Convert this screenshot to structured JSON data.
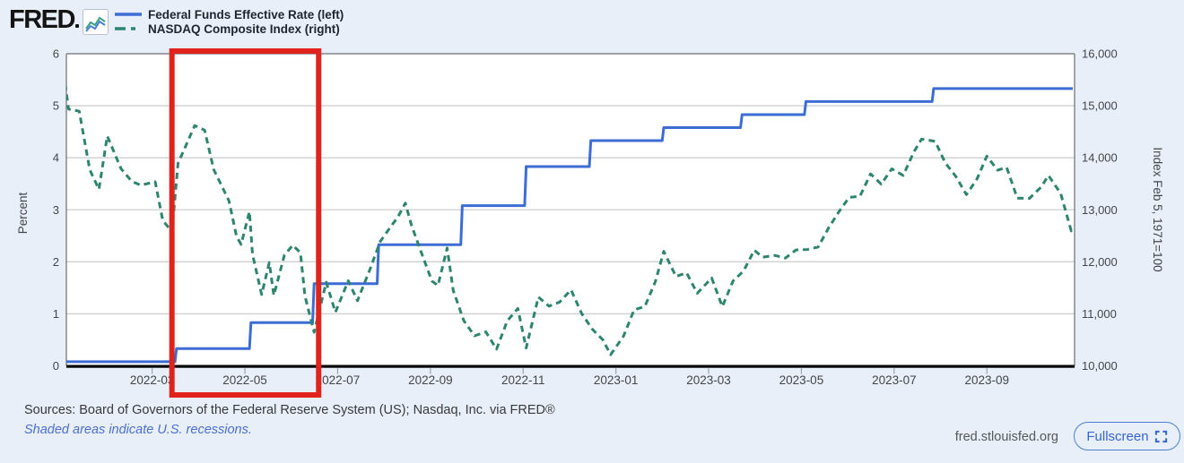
{
  "header": {
    "logo_text": "FRED",
    "logo_icon": "sparkline-chart-icon",
    "legend": [
      {
        "label": "Federal Funds Effective Rate (left)",
        "color": "#3c6dd5",
        "style": "solid"
      },
      {
        "label": "NASDAQ Composite Index (right)",
        "color": "#2d8570",
        "style": "dashed"
      }
    ]
  },
  "footer": {
    "sources": "Sources: Board of Governors of the Federal Reserve System (US); Nasdaq, Inc. via FRED®",
    "note": "Shaded areas indicate U.S. recessions.",
    "site": "fred.stlouisfed.org",
    "fullscreen_label": "Fullscreen"
  },
  "colors": {
    "background": "#e9eff8",
    "plot_background": "#ffffff",
    "grid": "#cfcfcf",
    "plot_border": "#6e6e6e",
    "axis_black": "#000000",
    "tick_text": "#434549",
    "ffr_blue": "#3c6dd5",
    "nasdaq_green": "#2d8570",
    "annotation_red": "#e0231c",
    "link_blue": "#4a6fce",
    "button_blue": "#3566d4"
  },
  "chart_data": {
    "type": "line",
    "title": "",
    "x_range": [
      "2022-01-03",
      "2023-10-27"
    ],
    "x_tick_labels": [
      "2022-03",
      "2022-05",
      "2022-07",
      "2022-09",
      "2022-11",
      "2023-01",
      "2023-03",
      "2023-05",
      "2023-07",
      "2023-09"
    ],
    "x_tick_months": [
      2,
      4,
      6,
      8,
      10,
      12,
      14,
      16,
      18,
      20
    ],
    "left_axis": {
      "label": "Percent",
      "ticks": [
        "0",
        "1",
        "2",
        "3",
        "4",
        "5",
        "6"
      ],
      "range": [
        0,
        6
      ]
    },
    "right_axis": {
      "label": "Index Feb 5, 1971=100",
      "ticks": [
        "10,000",
        "11,000",
        "12,000",
        "13,000",
        "14,000",
        "15,000",
        "16,000"
      ],
      "range": [
        10000,
        16000
      ]
    },
    "grid": true,
    "legend_position": "top-left",
    "annotation": {
      "shape": "rectangle",
      "color": "#e0231c",
      "stroke_width": 6,
      "date_start": "2022-03-14",
      "date_end": "2022-06-19",
      "covers": "full plot height plus x-axis labels"
    },
    "series": [
      {
        "name": "Federal Funds Effective Rate",
        "axis": "left",
        "unit": "percent",
        "color": "#3c6dd5",
        "style": "solid",
        "step": true,
        "points": [
          [
            "2022-01-03",
            0.08
          ],
          [
            "2022-03-16",
            0.08
          ],
          [
            "2022-03-17",
            0.33
          ],
          [
            "2022-05-04",
            0.33
          ],
          [
            "2022-05-05",
            0.83
          ],
          [
            "2022-06-15",
            0.83
          ],
          [
            "2022-06-16",
            1.58
          ],
          [
            "2022-07-27",
            1.58
          ],
          [
            "2022-07-28",
            2.33
          ],
          [
            "2022-09-21",
            2.33
          ],
          [
            "2022-09-22",
            3.08
          ],
          [
            "2022-11-02",
            3.08
          ],
          [
            "2022-11-03",
            3.83
          ],
          [
            "2022-12-14",
            3.83
          ],
          [
            "2022-12-15",
            4.33
          ],
          [
            "2023-02-01",
            4.33
          ],
          [
            "2023-02-02",
            4.58
          ],
          [
            "2023-03-22",
            4.58
          ],
          [
            "2023-03-23",
            4.83
          ],
          [
            "2023-05-03",
            4.83
          ],
          [
            "2023-05-04",
            5.08
          ],
          [
            "2023-07-26",
            5.08
          ],
          [
            "2023-07-27",
            5.33
          ],
          [
            "2023-10-27",
            5.33
          ]
        ]
      },
      {
        "name": "NASDAQ Composite Index",
        "axis": "right",
        "unit": "index",
        "color": "#2d8570",
        "style": "dashed",
        "step": false,
        "points": [
          [
            "2022-01-03",
            15833
          ],
          [
            "2022-01-07",
            14936
          ],
          [
            "2022-01-14",
            14894
          ],
          [
            "2022-01-21",
            13769
          ],
          [
            "2022-01-27",
            13394
          ],
          [
            "2022-02-02",
            14418
          ],
          [
            "2022-02-11",
            13791
          ],
          [
            "2022-02-18",
            13548
          ],
          [
            "2022-02-24",
            13473
          ],
          [
            "2022-03-03",
            13538
          ],
          [
            "2022-03-08",
            12795
          ],
          [
            "2022-03-14",
            12581
          ],
          [
            "2022-03-18",
            13894
          ],
          [
            "2022-03-29",
            14620
          ],
          [
            "2022-04-05",
            14532
          ],
          [
            "2022-04-11",
            13772
          ],
          [
            "2022-04-21",
            13175
          ],
          [
            "2022-04-26",
            12490
          ],
          [
            "2022-04-29",
            12335
          ],
          [
            "2022-05-04",
            12964
          ],
          [
            "2022-05-06",
            12145
          ],
          [
            "2022-05-12",
            11371
          ],
          [
            "2022-05-17",
            11985
          ],
          [
            "2022-05-20",
            11355
          ],
          [
            "2022-05-27",
            12131
          ],
          [
            "2022-06-02",
            12317
          ],
          [
            "2022-06-07",
            12176
          ],
          [
            "2022-06-10",
            11340
          ],
          [
            "2022-06-16",
            10646
          ],
          [
            "2022-06-24",
            11608
          ],
          [
            "2022-06-30",
            11029
          ],
          [
            "2022-07-08",
            11635
          ],
          [
            "2022-07-14",
            11251
          ],
          [
            "2022-07-22",
            11834
          ],
          [
            "2022-07-29",
            12391
          ],
          [
            "2022-08-05",
            12658
          ],
          [
            "2022-08-10",
            12855
          ],
          [
            "2022-08-15",
            13128
          ],
          [
            "2022-08-19",
            12705
          ],
          [
            "2022-08-26",
            12142
          ],
          [
            "2022-09-02",
            11631
          ],
          [
            "2022-09-06",
            11545
          ],
          [
            "2022-09-12",
            12266
          ],
          [
            "2022-09-16",
            11448
          ],
          [
            "2022-09-23",
            10868
          ],
          [
            "2022-09-30",
            10576
          ],
          [
            "2022-10-07",
            10652
          ],
          [
            "2022-10-14",
            10321
          ],
          [
            "2022-10-21",
            10860
          ],
          [
            "2022-10-28",
            11102
          ],
          [
            "2022-11-03",
            10343
          ],
          [
            "2022-11-11",
            11323
          ],
          [
            "2022-11-18",
            11146
          ],
          [
            "2022-11-25",
            11226
          ],
          [
            "2022-12-02",
            11461
          ],
          [
            "2022-12-09",
            11005
          ],
          [
            "2022-12-16",
            10705
          ],
          [
            "2022-12-23",
            10497
          ],
          [
            "2022-12-28",
            10213
          ],
          [
            "2023-01-06",
            10569
          ],
          [
            "2023-01-13",
            11079
          ],
          [
            "2023-01-20",
            11140
          ],
          [
            "2023-01-27",
            11622
          ],
          [
            "2023-02-02",
            12200
          ],
          [
            "2023-02-10",
            11718
          ],
          [
            "2023-02-17",
            11787
          ],
          [
            "2023-02-24",
            11395
          ],
          [
            "2023-03-03",
            11689
          ],
          [
            "2023-03-10",
            11139
          ],
          [
            "2023-03-17",
            11631
          ],
          [
            "2023-03-24",
            11824
          ],
          [
            "2023-03-31",
            12222
          ],
          [
            "2023-04-06",
            12088
          ],
          [
            "2023-04-14",
            12123
          ],
          [
            "2023-04-21",
            12072
          ],
          [
            "2023-04-28",
            12227
          ],
          [
            "2023-05-05",
            12236
          ],
          [
            "2023-05-12",
            12285
          ],
          [
            "2023-05-19",
            12658
          ],
          [
            "2023-05-26",
            12976
          ],
          [
            "2023-06-02",
            13241
          ],
          [
            "2023-06-09",
            13259
          ],
          [
            "2023-06-16",
            13690
          ],
          [
            "2023-06-23",
            13493
          ],
          [
            "2023-06-30",
            13788
          ],
          [
            "2023-07-07",
            13661
          ],
          [
            "2023-07-14",
            14114
          ],
          [
            "2023-07-19",
            14358
          ],
          [
            "2023-07-28",
            14317
          ],
          [
            "2023-08-04",
            13909
          ],
          [
            "2023-08-11",
            13645
          ],
          [
            "2023-08-18",
            13291
          ],
          [
            "2023-08-25",
            13591
          ],
          [
            "2023-09-01",
            14032
          ],
          [
            "2023-09-08",
            13762
          ],
          [
            "2023-09-14",
            13813
          ],
          [
            "2023-09-21",
            13224
          ],
          [
            "2023-09-29",
            13219
          ],
          [
            "2023-10-06",
            13431
          ],
          [
            "2023-10-11",
            13660
          ],
          [
            "2023-10-19",
            13314
          ],
          [
            "2023-10-26",
            12595
          ],
          [
            "2023-10-27",
            12643
          ]
        ]
      }
    ]
  }
}
